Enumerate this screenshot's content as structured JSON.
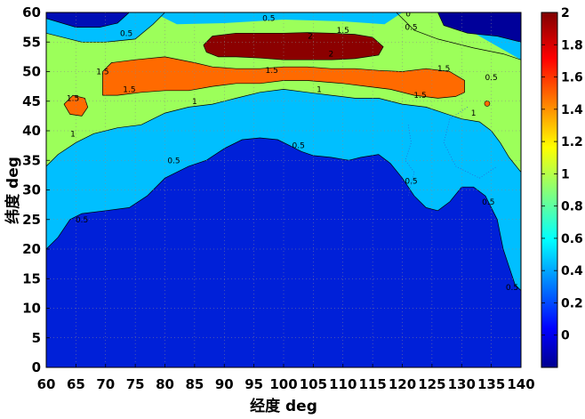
{
  "chart_data": {
    "type": "contourf",
    "title": "",
    "xlabel": "经度 deg",
    "ylabel": "纬度 deg",
    "xlim": [
      60,
      140
    ],
    "ylim": [
      0,
      60
    ],
    "xticks": [
      60,
      65,
      70,
      75,
      80,
      85,
      90,
      95,
      100,
      105,
      110,
      115,
      120,
      125,
      130,
      135,
      140
    ],
    "yticks": [
      0,
      5,
      10,
      15,
      20,
      25,
      30,
      35,
      40,
      45,
      50,
      55,
      60
    ],
    "colorbar": {
      "colormap": "jet",
      "range": [
        -0.2,
        2
      ],
      "ticks": [
        0,
        0.2,
        0.4,
        0.6,
        0.8,
        1,
        1.2,
        1.4,
        1.6,
        1.8,
        2
      ]
    },
    "levels": [
      {
        "value": 0.5,
        "color": "#00BFFF"
      },
      {
        "value": 1,
        "color": "#9CFF5A"
      },
      {
        "value": 1.5,
        "color": "#FF6A00"
      },
      {
        "value": 2,
        "color": "#8B0000"
      }
    ],
    "base_color": "#0020D8",
    "contours": [
      {
        "level": 0.5,
        "label": "0.5",
        "points": [
          [
            60,
            20
          ],
          [
            62,
            22
          ],
          [
            64,
            25
          ],
          [
            66,
            26
          ],
          [
            70,
            26.5
          ],
          [
            74,
            27
          ],
          [
            77,
            29
          ],
          [
            80,
            32
          ],
          [
            84,
            34
          ],
          [
            87,
            35
          ],
          [
            90,
            37
          ],
          [
            93,
            38.5
          ],
          [
            96,
            38.8
          ],
          [
            99,
            38.5
          ],
          [
            101,
            37.5
          ],
          [
            103,
            36.5
          ],
          [
            105,
            35.8
          ],
          [
            108,
            35.5
          ],
          [
            111,
            35
          ],
          [
            113,
            35.5
          ],
          [
            116,
            36
          ],
          [
            118,
            34.5
          ],
          [
            120,
            32
          ],
          [
            122,
            29
          ],
          [
            124,
            27
          ],
          [
            126,
            26.5
          ],
          [
            128,
            28
          ],
          [
            130,
            30.5
          ],
          [
            132,
            30.5
          ],
          [
            134,
            29
          ],
          [
            136,
            25
          ],
          [
            137,
            20
          ],
          [
            138,
            17
          ],
          [
            139,
            14
          ],
          [
            140,
            13
          ]
        ]
      },
      {
        "level": 1,
        "label": "1",
        "points": [
          [
            60,
            34
          ],
          [
            62,
            36
          ],
          [
            65,
            38
          ],
          [
            68,
            39.5
          ],
          [
            72,
            40.5
          ],
          [
            76,
            41
          ],
          [
            80,
            43
          ],
          [
            84,
            44
          ],
          [
            88,
            44.5
          ],
          [
            92,
            45.5
          ],
          [
            96,
            46.5
          ],
          [
            100,
            47
          ],
          [
            104,
            46.5
          ],
          [
            108,
            46
          ],
          [
            112,
            45.5
          ],
          [
            116,
            45.5
          ],
          [
            120,
            44.5
          ],
          [
            124,
            44
          ],
          [
            127,
            43
          ],
          [
            130,
            42
          ],
          [
            133,
            41.5
          ],
          [
            135,
            40
          ],
          [
            136.5,
            38
          ],
          [
            138,
            35.5
          ],
          [
            140,
            33
          ]
        ]
      },
      {
        "level": 1.5,
        "label": "1.5",
        "points": [
          [
            69.5,
            46
          ],
          [
            69.5,
            50
          ],
          [
            71,
            51.5
          ],
          [
            75,
            52
          ],
          [
            80,
            52.5
          ],
          [
            85,
            51.5
          ],
          [
            88,
            50.8
          ],
          [
            92,
            50.5
          ],
          [
            96,
            50.5
          ],
          [
            100,
            50.8
          ],
          [
            104,
            50.8
          ],
          [
            108,
            50.5
          ],
          [
            112,
            50.5
          ],
          [
            116,
            50.2
          ],
          [
            120,
            50
          ],
          [
            124,
            50.5
          ],
          [
            128,
            50
          ],
          [
            130.5,
            48.5
          ],
          [
            130.5,
            46.5
          ],
          [
            129,
            45.8
          ],
          [
            126,
            45.5
          ],
          [
            122,
            46
          ],
          [
            118,
            47
          ],
          [
            114,
            47.5
          ],
          [
            110,
            48
          ],
          [
            104,
            48.5
          ],
          [
            100,
            48.5
          ],
          [
            96,
            48
          ],
          [
            92,
            48
          ],
          [
            88,
            47.5
          ],
          [
            84,
            46.8
          ],
          [
            80,
            46.8
          ],
          [
            76,
            46.5
          ],
          [
            72,
            46
          ],
          [
            69.5,
            46
          ]
        ]
      },
      {
        "level": 2,
        "label": "2",
        "points": [
          [
            86.5,
            54.5
          ],
          [
            88,
            56
          ],
          [
            92,
            56.5
          ],
          [
            96,
            56.5
          ],
          [
            100,
            56.5
          ],
          [
            104,
            56.6
          ],
          [
            108,
            56.5
          ],
          [
            112,
            56.3
          ],
          [
            115,
            55.8
          ],
          [
            116.8,
            54.2
          ],
          [
            116,
            52.8
          ],
          [
            112,
            52.2
          ],
          [
            108,
            52
          ],
          [
            104,
            52
          ],
          [
            100,
            52
          ],
          [
            96,
            52.3
          ],
          [
            92,
            52.5
          ],
          [
            89,
            52.5
          ],
          [
            87,
            53.3
          ],
          [
            86.5,
            54.5
          ]
        ]
      },
      {
        "level": 1.5,
        "label": "1.5",
        "points": [
          [
            63,
            44.5
          ],
          [
            64.5,
            46
          ],
          [
            66.5,
            45.5
          ],
          [
            67,
            44
          ],
          [
            66,
            42.5
          ],
          [
            64,
            42.8
          ],
          [
            63,
            44.5
          ]
        ]
      },
      {
        "level": 0,
        "label": "",
        "points": [
          [
            60,
            59
          ],
          [
            65,
            57.5
          ],
          [
            69,
            57.5
          ],
          [
            72,
            58.2
          ],
          [
            74,
            60
          ]
        ]
      },
      {
        "level": 0.5,
        "label": "",
        "points": [
          [
            60,
            56.5
          ],
          [
            66,
            55
          ],
          [
            70,
            55
          ],
          [
            75,
            55.5
          ],
          [
            78,
            58
          ],
          [
            80,
            60
          ]
        ]
      },
      {
        "level": 0,
        "label": "",
        "points": [
          [
            126,
            60
          ],
          [
            127,
            57.8
          ],
          [
            131,
            56.5
          ],
          [
            136,
            56
          ],
          [
            140,
            55
          ]
        ]
      },
      {
        "level": 0.5,
        "label": "",
        "points": [
          [
            119,
            60
          ],
          [
            122,
            57
          ],
          [
            126,
            55.5
          ],
          [
            132,
            54
          ],
          [
            137,
            53
          ],
          [
            140,
            52
          ]
        ]
      }
    ],
    "contour_labels": [
      {
        "text": "0.5",
        "x": 66,
        "y": 25
      },
      {
        "text": "0.5",
        "x": 81.5,
        "y": 35
      },
      {
        "text": "0.5",
        "x": 102.5,
        "y": 37.5
      },
      {
        "text": "0.5",
        "x": 121.5,
        "y": 31.5
      },
      {
        "text": "0.5",
        "x": 134.5,
        "y": 28
      },
      {
        "text": "0.5",
        "x": 138.5,
        "y": 13.5
      },
      {
        "text": "1",
        "x": 64.5,
        "y": 39.5
      },
      {
        "text": "1",
        "x": 85,
        "y": 45
      },
      {
        "text": "1",
        "x": 106,
        "y": 47
      },
      {
        "text": "1",
        "x": 132,
        "y": 43
      },
      {
        "text": "1.5",
        "x": 74,
        "y": 47
      },
      {
        "text": "1.5",
        "x": 98,
        "y": 50.2
      },
      {
        "text": "1.5",
        "x": 127,
        "y": 50.5
      },
      {
        "text": "1.5",
        "x": 69.5,
        "y": 50
      },
      {
        "text": "1.5",
        "x": 64.5,
        "y": 45.5
      },
      {
        "text": "1.5",
        "x": 123,
        "y": 46
      },
      {
        "text": "2",
        "x": 104.5,
        "y": 56
      },
      {
        "text": "2",
        "x": 108,
        "y": 53
      },
      {
        "text": "1.5",
        "x": 110,
        "y": 57
      },
      {
        "text": "0.5",
        "x": 97.5,
        "y": 59
      },
      {
        "text": "0.5",
        "x": 121.5,
        "y": 57.5
      },
      {
        "text": "0.5",
        "x": 73.5,
        "y": 56.5
      },
      {
        "text": "0",
        "x": 121,
        "y": 59.8
      },
      {
        "text": "0.5",
        "x": 135,
        "y": 49
      }
    ]
  }
}
